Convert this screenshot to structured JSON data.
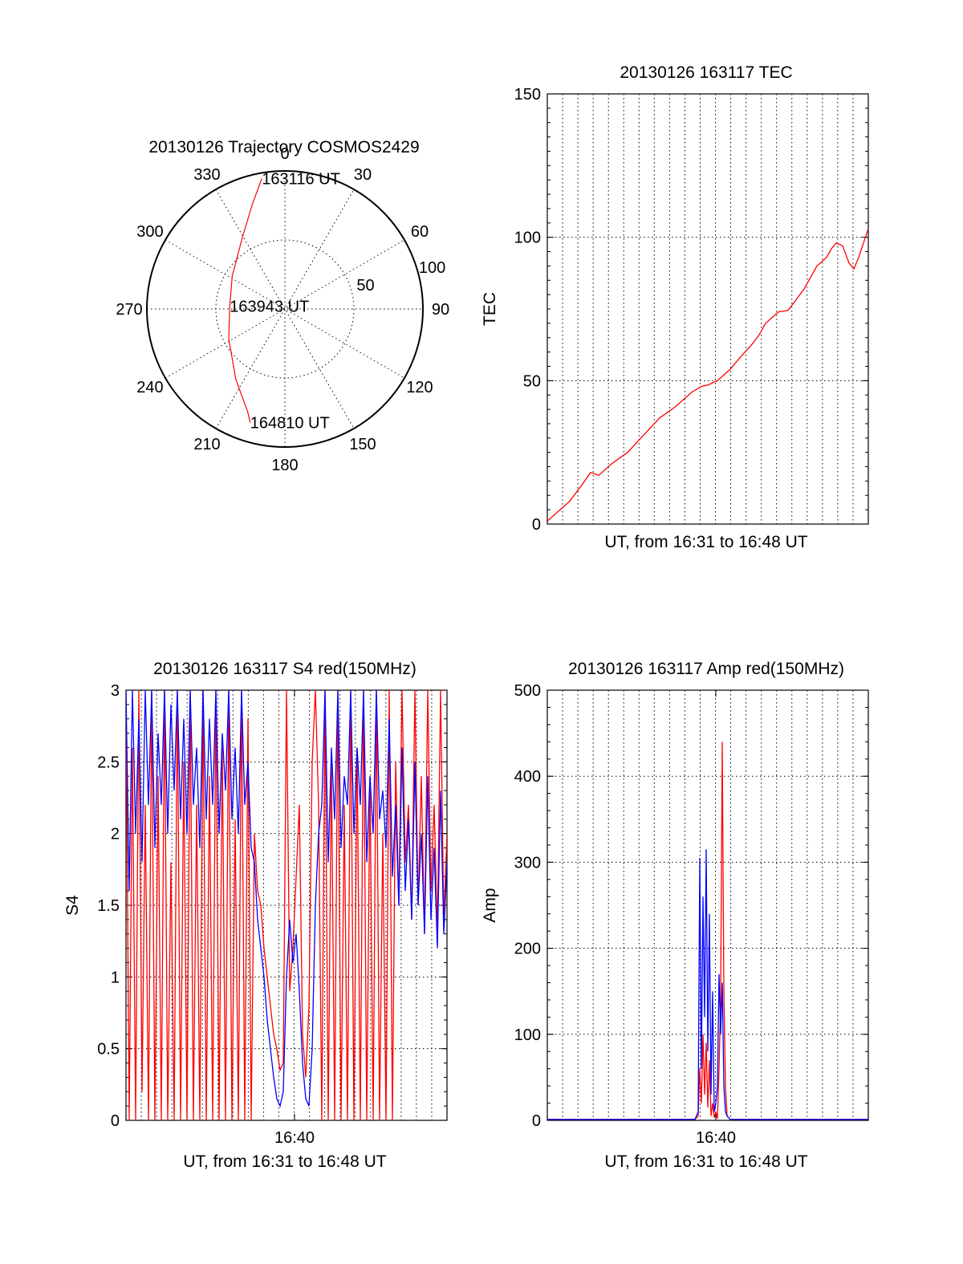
{
  "colors": {
    "red": "#ff0000",
    "blue": "#0000ff",
    "axis": "#000000",
    "background": "#ffffff"
  },
  "chart_data": [
    {
      "type": "polar",
      "title": "20130126 Trajectory COSMOS2429",
      "angle_labels": [
        "0",
        "30",
        "60",
        "90",
        "120",
        "150",
        "180",
        "210",
        "240",
        "270",
        "300",
        "330"
      ],
      "radius_labels": [
        "50",
        "100"
      ],
      "radius_max": 100,
      "series": [
        {
          "color": "#ff0000",
          "points": [
            [
              -10,
              96
            ],
            [
              -17,
              80
            ],
            [
              -31,
              60
            ],
            [
              -58,
              45
            ],
            [
              -87,
              40
            ],
            [
              -118,
              46
            ],
            [
              -145,
              62
            ],
            [
              -160,
              79
            ],
            [
              -163,
              86
            ]
          ]
        }
      ],
      "annotations": [
        {
          "text": "163116 UT",
          "azimuth": -10,
          "radius": 96
        },
        {
          "text": "163943 UT",
          "azimuth": -87,
          "radius": 40
        },
        {
          "text": "164810 UT",
          "azimuth": -163,
          "radius": 86
        }
      ]
    },
    {
      "type": "line",
      "title": "20130126 163117 TEC",
      "xlabel": "UT, from 16:31 to 16:48 UT",
      "ylabel": "TEC",
      "xlim": [
        0,
        100
      ],
      "ylim": [
        0,
        150
      ],
      "yticks": [
        "0",
        "50",
        "100",
        "150"
      ],
      "grid": true,
      "series": [
        {
          "color": "#ff0000",
          "x": [
            0,
            3,
            7,
            9,
            11,
            13.5,
            16,
            20,
            25,
            30,
            35,
            40,
            45,
            48,
            50,
            53,
            57,
            60,
            64,
            66,
            68,
            72,
            75,
            80,
            84,
            87,
            88.5,
            90,
            92,
            94,
            95.5,
            97,
            100
          ],
          "y": [
            1,
            4,
            8,
            11,
            14,
            18,
            17,
            21,
            25,
            31,
            37,
            41,
            46,
            48,
            48.5,
            50,
            54,
            58,
            63,
            66,
            70,
            74,
            74.5,
            82,
            90,
            93,
            96,
            98,
            97,
            91,
            89,
            93,
            103
          ]
        }
      ]
    },
    {
      "type": "line",
      "title": "20130126 163117 S4 red(150MHz)",
      "xlabel": "UT, from 16:31 to 16:48 UT",
      "ylabel": "S4",
      "xlim": [
        0,
        100
      ],
      "ylim": [
        0,
        3
      ],
      "yticks": [
        "0",
        "0.5",
        "1",
        "1.5",
        "2",
        "2.5",
        "3"
      ],
      "xticks": [
        "16:40"
      ],
      "grid": true,
      "series": [
        {
          "color": "#ff0000",
          "x": [
            0,
            1,
            2,
            3,
            4,
            5,
            6,
            7,
            8,
            9,
            10,
            11,
            12,
            13,
            14,
            15,
            16,
            17,
            18,
            19,
            20,
            21,
            22,
            23,
            24,
            25,
            26,
            27,
            28,
            29,
            30,
            31,
            32,
            33,
            34,
            35,
            36,
            37,
            38,
            39,
            40,
            41,
            42,
            43,
            44,
            45,
            46,
            47,
            48,
            49,
            50,
            51,
            52,
            53,
            54,
            55,
            56,
            57,
            58,
            59,
            60,
            61,
            62,
            63,
            64,
            65,
            66,
            67,
            68,
            69,
            70,
            71,
            72,
            73,
            74,
            75,
            76,
            77,
            78,
            79,
            80,
            81,
            82,
            83,
            84,
            85,
            86,
            87,
            88,
            89,
            90,
            91,
            92,
            93,
            94,
            95,
            96,
            97,
            98,
            99,
            100
          ],
          "y": [
            3,
            0,
            2.6,
            0,
            3,
            0.2,
            2.2,
            0,
            3,
            0,
            2.4,
            0,
            3,
            0,
            1.8,
            0,
            3,
            0,
            2.5,
            0,
            3,
            0,
            2.2,
            0,
            3,
            0,
            2.4,
            0,
            3,
            0,
            2.6,
            0,
            3,
            0,
            2.1,
            0,
            3,
            0,
            2.8,
            0,
            2.0,
            1.6,
            1.5,
            1.2,
            1.0,
            0.8,
            0.6,
            0.5,
            0.35,
            0.4,
            3,
            0.9,
            1.2,
            1.7,
            2.2,
            0.6,
            0.3,
            0.8,
            2.5,
            3,
            2.2,
            0,
            3,
            0,
            2.5,
            0,
            3,
            0,
            2.2,
            0,
            3,
            0,
            2.6,
            0,
            3,
            0,
            2.4,
            0,
            3,
            0,
            2.0,
            0,
            3,
            0,
            2.5,
            1.5,
            3,
            1.8,
            2.2,
            1.4,
            3,
            1.5,
            2.4,
            1.3,
            3,
            1.6,
            2.2,
            1.3,
            3,
            1.4,
            2.0
          ]
        },
        {
          "color": "#0000ff",
          "x": [
            0,
            1,
            2,
            3,
            4,
            5,
            6,
            7,
            8,
            9,
            10,
            11,
            12,
            13,
            14,
            15,
            16,
            17,
            18,
            19,
            20,
            21,
            22,
            23,
            24,
            25,
            26,
            27,
            28,
            29,
            30,
            31,
            32,
            33,
            34,
            35,
            36,
            37,
            38,
            39,
            40,
            41,
            42,
            43,
            44,
            45,
            46,
            47,
            48,
            49,
            50,
            51,
            52,
            53,
            54,
            55,
            56,
            57,
            58,
            59,
            60,
            61,
            62,
            63,
            64,
            65,
            66,
            67,
            68,
            69,
            70,
            71,
            72,
            73,
            74,
            75,
            76,
            77,
            78,
            79,
            80,
            81,
            82,
            83,
            84,
            85,
            86,
            87,
            88,
            89,
            90,
            91,
            92,
            93,
            94,
            95,
            96,
            97,
            98,
            99,
            100
          ],
          "y": [
            3,
            1.6,
            3,
            2.0,
            2.8,
            1.8,
            3,
            2.2,
            3,
            1.9,
            2.7,
            2.2,
            3,
            2.0,
            2.9,
            2.3,
            3,
            2.1,
            2.8,
            2.0,
            3,
            2.2,
            2.6,
            1.9,
            3,
            2.1,
            2.8,
            2.2,
            3,
            2.0,
            2.7,
            2.3,
            3,
            2.1,
            2.6,
            2.0,
            3,
            2.2,
            2.5,
            1.9,
            1.8,
            1.4,
            1.2,
            1.0,
            0.7,
            0.5,
            0.3,
            0.15,
            0.1,
            0.2,
            1.0,
            1.4,
            1.1,
            1.3,
            0.9,
            0.4,
            0.15,
            0.1,
            0.5,
            1.5,
            2.0,
            2.2,
            3,
            1.8,
            2.6,
            2.1,
            3,
            1.9,
            2.4,
            2.2,
            3,
            2.0,
            2.6,
            2.2,
            3,
            1.8,
            2.4,
            2.0,
            3,
            2.1,
            2.3,
            1.9,
            2.8,
            1.7,
            2.2,
            1.5,
            2.6,
            1.6,
            2.1,
            1.4,
            2.5,
            1.5,
            2.0,
            1.3,
            2.4,
            1.4,
            1.9,
            1.2,
            2.3,
            1.3,
            1.8
          ]
        }
      ]
    },
    {
      "type": "line",
      "title": "20130126 163117 Amp red(150MHz)",
      "xlabel": "UT, from 16:31 to 16:48 UT",
      "ylabel": "Amp",
      "xlim": [
        0,
        100
      ],
      "ylim": [
        0,
        500
      ],
      "yticks": [
        "0",
        "100",
        "200",
        "300",
        "400",
        "500"
      ],
      "xticks": [
        "16:40"
      ],
      "grid": true,
      "series": [
        {
          "color": "#ff0000",
          "x": [
            0,
            46,
            47,
            47.5,
            48,
            48.5,
            49,
            49.5,
            50,
            50.5,
            51,
            51.5,
            52,
            52.5,
            53,
            53.5,
            54,
            54.5,
            55,
            55.5,
            56,
            57,
            100
          ],
          "y": [
            1,
            1,
            5,
            60,
            20,
            100,
            30,
            90,
            15,
            70,
            5,
            20,
            3,
            10,
            2,
            60,
            140,
            440,
            150,
            40,
            5,
            1,
            1
          ]
        },
        {
          "color": "#0000ff",
          "x": [
            0,
            46,
            47,
            47.5,
            48,
            48.5,
            49,
            49.5,
            50,
            50.5,
            51,
            51.5,
            52,
            52.5,
            53,
            53.5,
            54,
            54.5,
            55,
            55.5,
            56,
            57,
            100
          ],
          "y": [
            1,
            1,
            10,
            305,
            60,
            260,
            120,
            315,
            80,
            240,
            30,
            150,
            10,
            20,
            40,
            170,
            100,
            160,
            40,
            10,
            5,
            1,
            1
          ]
        }
      ]
    }
  ]
}
